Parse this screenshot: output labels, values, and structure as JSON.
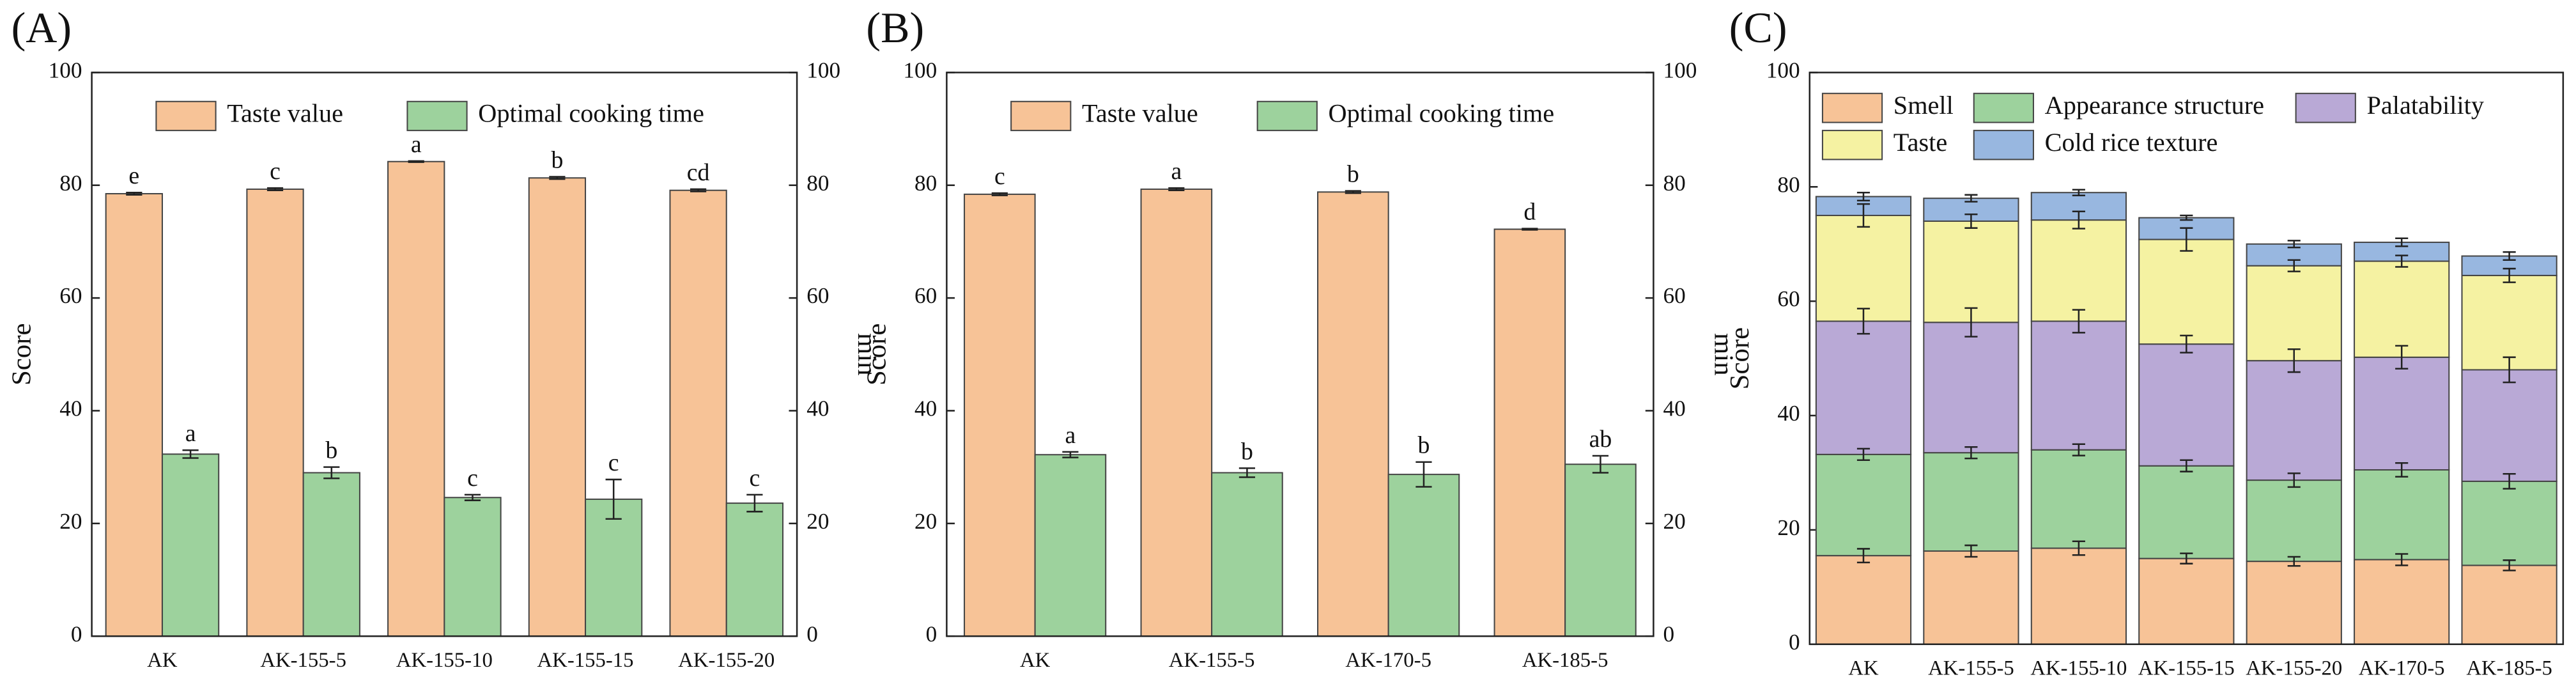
{
  "chart_data": [
    {
      "type": "bar",
      "title": "(A)",
      "ylabel": "Score",
      "y2label": "min",
      "categories": [
        "AK",
        "AK-155-5",
        "AK-155-10",
        "AK-155-15",
        "AK-155-20"
      ],
      "series": [
        {
          "name": "Taste value",
          "color": "#f7c397",
          "values": [
            78.5,
            79.3,
            84.2,
            81.3,
            79.1
          ],
          "errors": [
            0.2,
            0.2,
            0.1,
            0.2,
            0.2
          ],
          "letters": [
            "e",
            "c",
            "a",
            "b",
            "cd"
          ]
        },
        {
          "name": "Optimal cooking time",
          "color": "#9dd29d",
          "axis": "y2",
          "values": [
            32.3,
            29.0,
            24.6,
            24.3,
            23.6
          ],
          "errors": [
            0.7,
            1.0,
            0.5,
            3.5,
            1.5
          ],
          "letters": [
            "a",
            "b",
            "c",
            "c",
            "c"
          ]
        }
      ],
      "ylim": [
        0,
        100
      ],
      "yticks": [
        0,
        20,
        40,
        60,
        80,
        100
      ],
      "y2lim": [
        0,
        100
      ],
      "y2ticks": [
        0,
        20,
        40,
        60,
        80,
        100
      ]
    },
    {
      "type": "bar",
      "title": "(B)",
      "ylabel": "Score",
      "y2label": "min",
      "categories": [
        "AK",
        "AK-155-5",
        "AK-170-5",
        "AK-185-5"
      ],
      "series": [
        {
          "name": "Taste value",
          "color": "#f7c397",
          "values": [
            78.4,
            79.3,
            78.8,
            72.2
          ],
          "errors": [
            0.2,
            0.2,
            0.2,
            0.1
          ],
          "letters": [
            "c",
            "a",
            "b",
            "d"
          ]
        },
        {
          "name": "Optimal cooking time",
          "color": "#9dd29d",
          "axis": "y2",
          "values": [
            32.2,
            29.0,
            28.7,
            30.5
          ],
          "errors": [
            0.5,
            0.8,
            2.2,
            1.5
          ],
          "letters": [
            "a",
            "b",
            "b",
            "ab"
          ]
        }
      ],
      "ylim": [
        0,
        100
      ],
      "yticks": [
        0,
        20,
        40,
        60,
        80,
        100
      ],
      "y2lim": [
        0,
        100
      ],
      "y2ticks": [
        0,
        20,
        40,
        60,
        80,
        100
      ]
    },
    {
      "type": "stacked_bar",
      "title": "(C)",
      "ylabel": "Score",
      "categories": [
        "AK",
        "AK-155-5",
        "AK-155-10",
        "AK-155-15",
        "AK-155-20",
        "AK-170-5",
        "AK-185-5"
      ],
      "series": [
        {
          "name": "Smell",
          "color": "#f7c397",
          "values": [
            15.5,
            16.3,
            16.8,
            15.0,
            14.5,
            14.8,
            13.8
          ],
          "errors": [
            1.2,
            1.0,
            1.2,
            0.9,
            0.8,
            1.0,
            0.9
          ]
        },
        {
          "name": "Appearance structure",
          "color": "#9dd29d",
          "values": [
            17.7,
            17.2,
            17.2,
            16.2,
            14.2,
            15.7,
            14.7
          ],
          "errors": [
            1.0,
            1.0,
            1.0,
            1.0,
            1.2,
            1.2,
            1.3
          ]
        },
        {
          "name": "Palatability",
          "color": "#b9a9d6",
          "values": [
            23.3,
            22.8,
            22.5,
            21.3,
            20.9,
            19.7,
            19.5
          ],
          "errors": [
            2.2,
            2.5,
            2.0,
            1.5,
            2.0,
            2.0,
            2.2
          ]
        },
        {
          "name": "Taste",
          "color": "#f5f2a2",
          "values": [
            18.5,
            17.7,
            17.7,
            18.3,
            16.6,
            16.8,
            16.5
          ],
          "errors": [
            2.0,
            1.2,
            1.5,
            2.0,
            1.0,
            1.0,
            1.2
          ]
        },
        {
          "name": "Cold rice texture",
          "color": "#98b7e0",
          "values": [
            3.3,
            4.0,
            4.8,
            3.8,
            3.8,
            3.3,
            3.4
          ],
          "errors": [
            0.7,
            0.6,
            0.5,
            0.4,
            0.6,
            0.7,
            0.7
          ]
        }
      ],
      "ylim": [
        0,
        100
      ],
      "yticks": [
        0,
        20,
        40,
        60,
        80,
        100
      ]
    }
  ]
}
